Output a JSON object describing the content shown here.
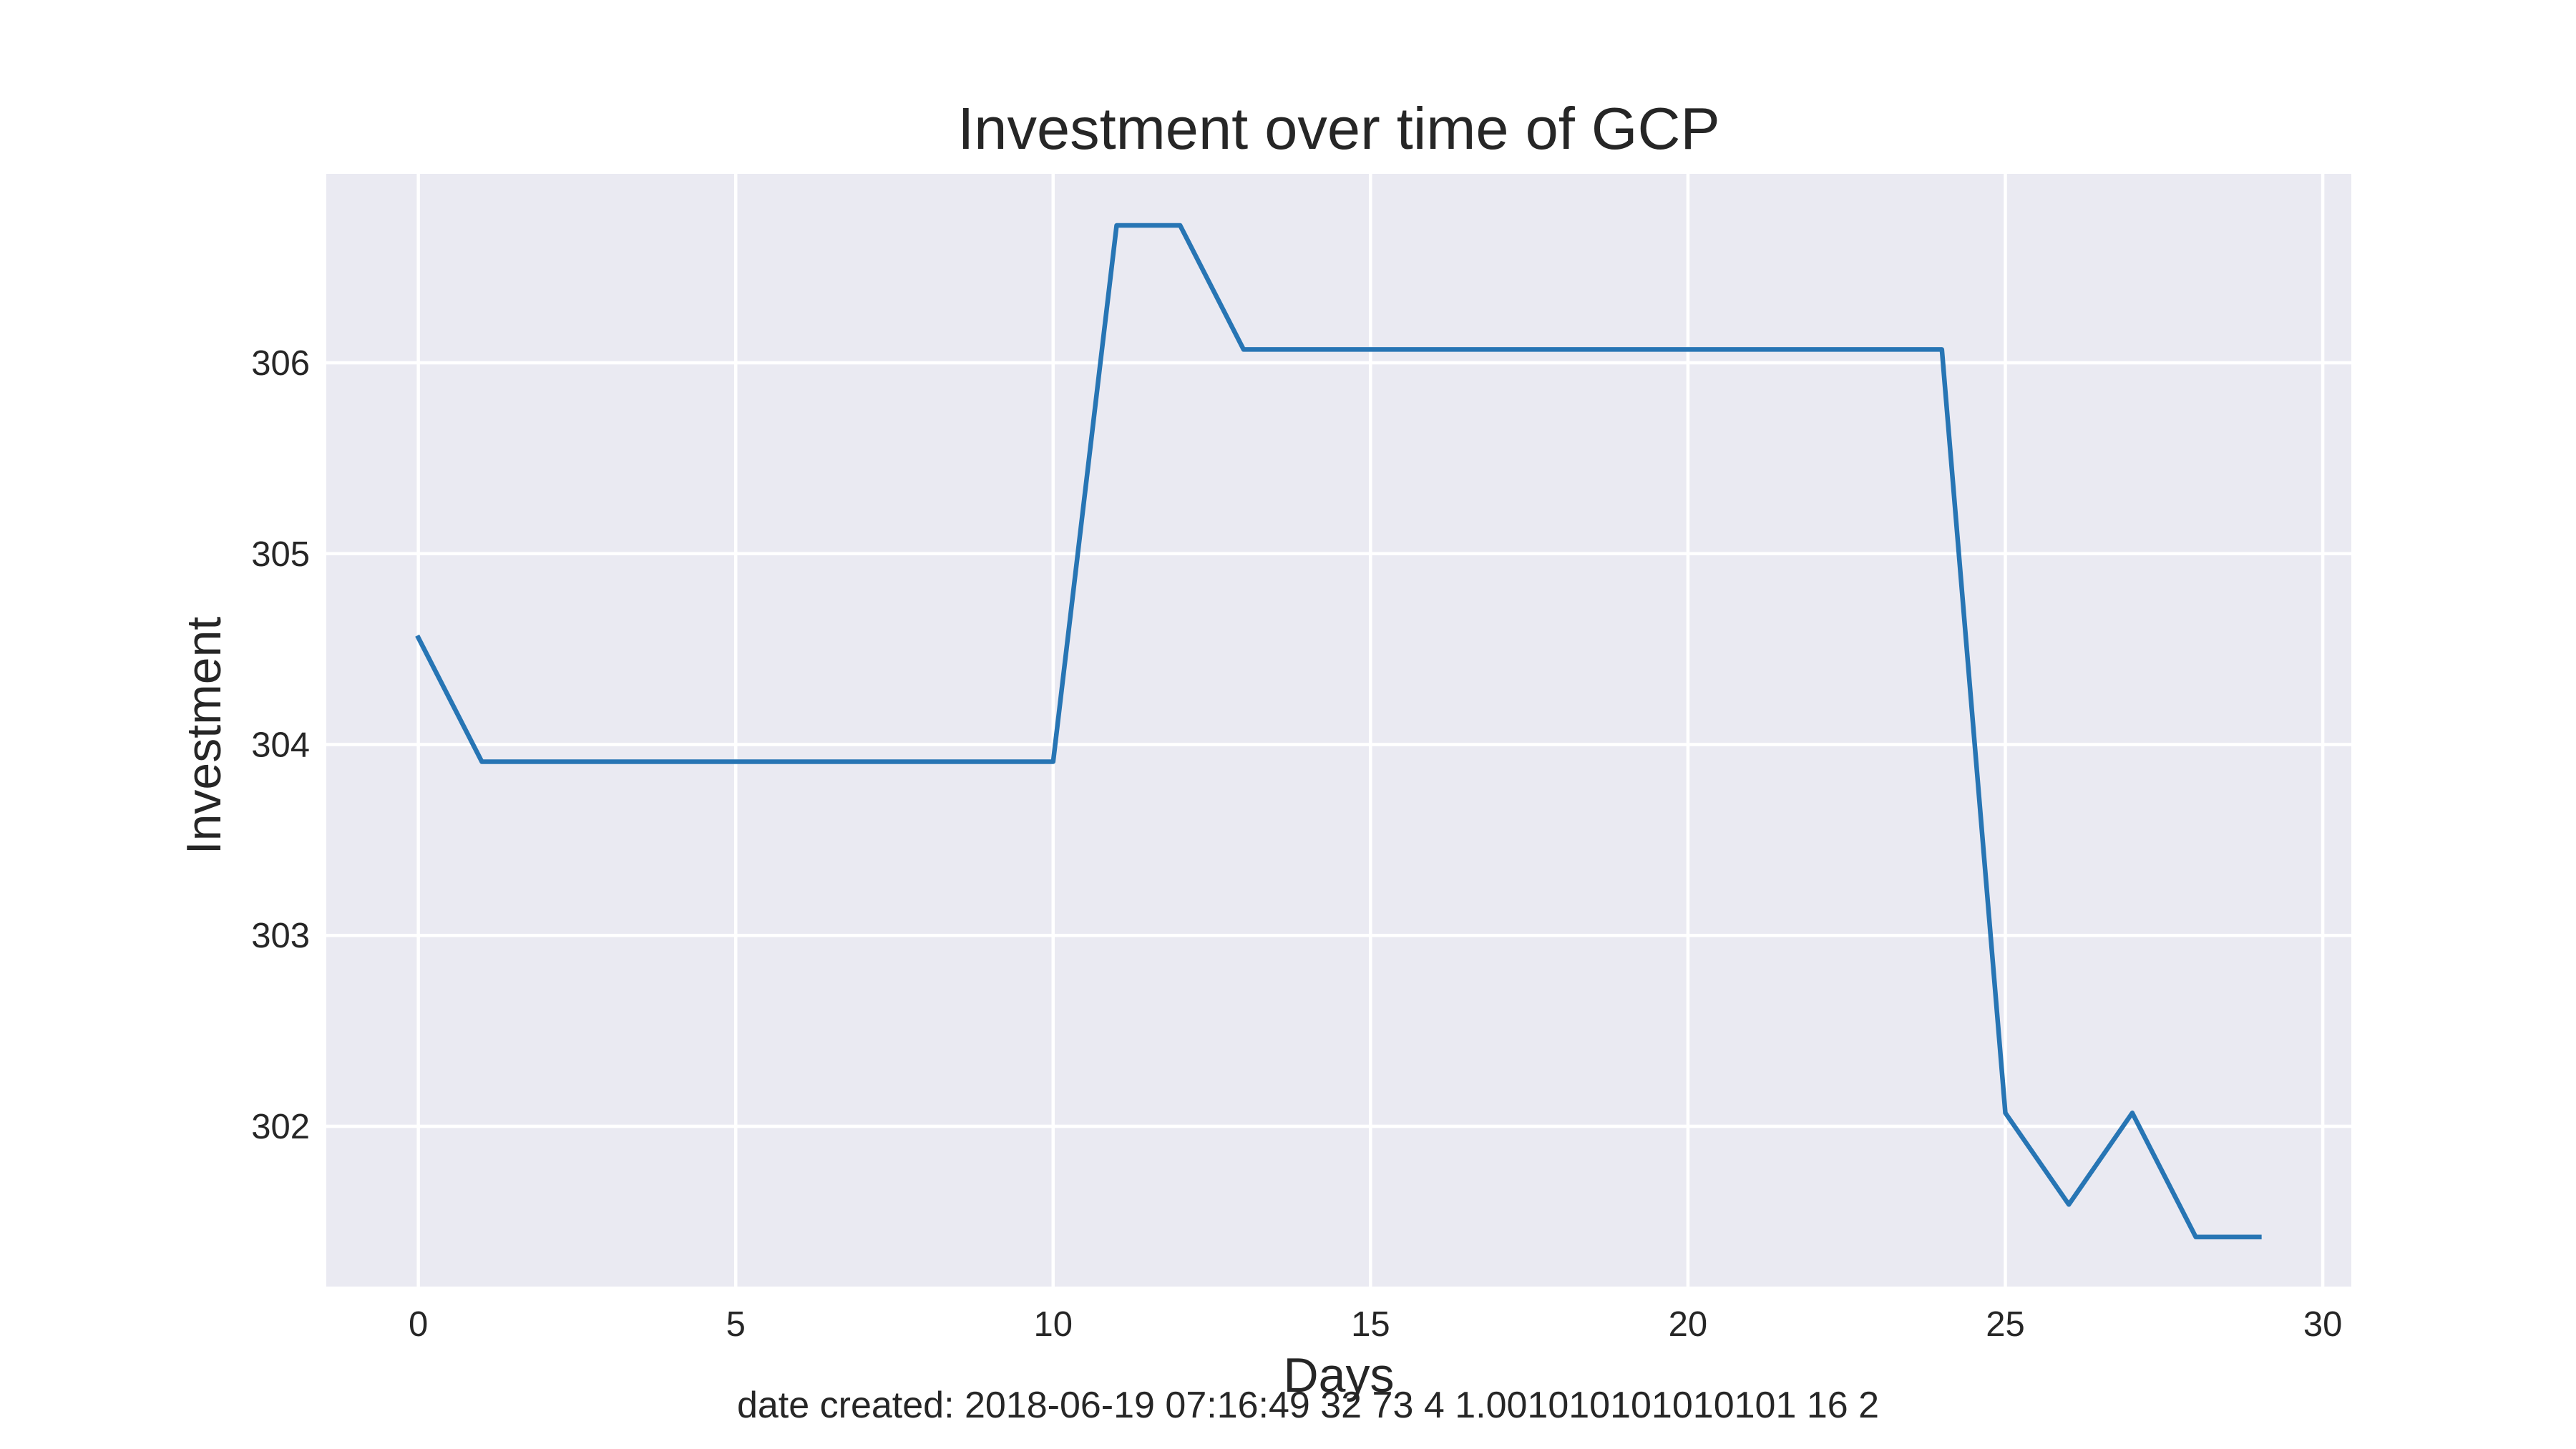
{
  "chart_data": {
    "type": "line",
    "title": "Investment over time of GCP",
    "xlabel": "Days",
    "ylabel": "Investment",
    "xlim": [
      -1.45,
      30.45
    ],
    "ylim": [
      301.16,
      306.99
    ],
    "xticks": [
      0,
      5,
      10,
      15,
      20,
      25,
      30
    ],
    "yticks": [
      302,
      303,
      304,
      305,
      306
    ],
    "grid": true,
    "legend": "none",
    "colors": {
      "background": "#eaeaf2",
      "grid": "#ffffff",
      "line": "#2775b4",
      "text": "#262626"
    },
    "series": [
      {
        "color": "#2775b4",
        "x": [
          0,
          1,
          2,
          3,
          4,
          5,
          6,
          7,
          8,
          9,
          10,
          11,
          12,
          13,
          14,
          15,
          16,
          17,
          18,
          19,
          20,
          21,
          22,
          23,
          24,
          25,
          26,
          27,
          28,
          29
        ],
        "values": [
          304.56,
          303.91,
          303.91,
          303.91,
          303.91,
          303.91,
          303.91,
          303.91,
          303.91,
          303.91,
          303.91,
          306.72,
          306.72,
          306.07,
          306.07,
          306.07,
          306.07,
          306.07,
          306.07,
          306.07,
          306.07,
          306.07,
          306.07,
          306.07,
          306.07,
          302.07,
          301.59,
          302.07,
          301.42,
          301.42
        ]
      }
    ],
    "footnote": "date created: 2018-06-19 07:16:49 32 73 4 1.001010101010101 16 2"
  }
}
